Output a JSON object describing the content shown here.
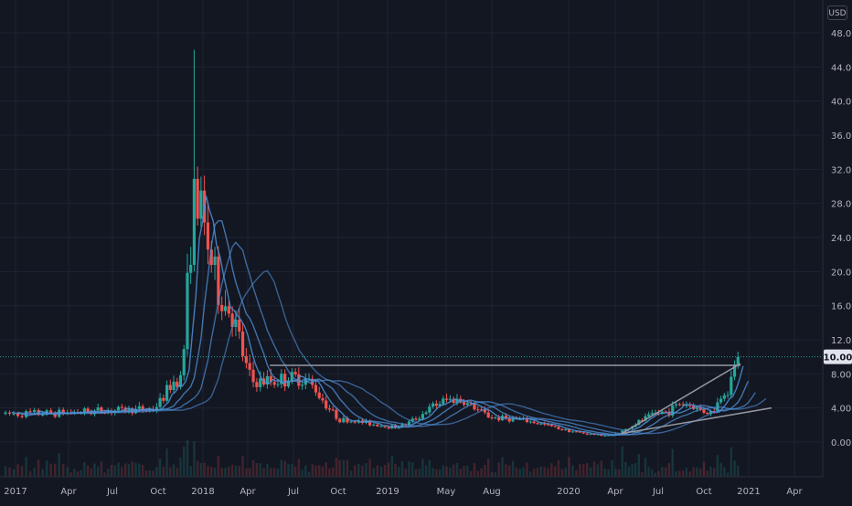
{
  "currency": "USD",
  "colors": {
    "background": "#131722",
    "grid": "#1f2331",
    "axis_text": "#b2b5be",
    "up": "#26a69a",
    "down": "#ef5350",
    "ma": "#4f8fd6",
    "trend": "#9598a1",
    "price_line": "#26a69a",
    "price_badge_bg": "#e0e3eb",
    "price_badge_text": "#131722"
  },
  "chart_data": {
    "type": "candlestick",
    "x_labels": [
      "2017",
      "Apr",
      "Jul",
      "Oct",
      "2018",
      "Apr",
      "Jul",
      "Oct",
      "2019",
      "May",
      "Aug",
      "2020",
      "Apr",
      "Jul",
      "Oct",
      "2021",
      "Apr"
    ],
    "y_ticks": [
      "0.00",
      "4.00",
      "8.00",
      "12.00",
      "16.00",
      "20.00",
      "24.00",
      "28.00",
      "32.00",
      "36.00",
      "40.00",
      "44.00",
      "48.00"
    ],
    "ylim": [
      -4,
      52
    ],
    "last_price": 10.0,
    "last_price_label": "10.00",
    "key_prices": [
      {
        "date": "2016-12",
        "price": 3.3
      },
      {
        "date": "2017-09",
        "price": 3.8
      },
      {
        "date": "2017-11",
        "price": 7.5
      },
      {
        "date": "2017-12",
        "price": 28.0
      },
      {
        "date": "2017-12-15",
        "price_high": 46.0
      },
      {
        "date": "2018-02",
        "price": 16.0
      },
      {
        "date": "2018-04",
        "price": 7.0
      },
      {
        "date": "2018-07",
        "price": 7.5
      },
      {
        "date": "2018-10",
        "price": 2.5
      },
      {
        "date": "2019-01",
        "price": 1.8
      },
      {
        "date": "2019-05",
        "price": 5.0
      },
      {
        "date": "2019-08",
        "price": 2.8
      },
      {
        "date": "2020-03",
        "price": 0.8
      },
      {
        "date": "2020-07",
        "price": 3.5
      },
      {
        "date": "2020-08",
        "price": 4.5
      },
      {
        "date": "2020-10",
        "price": 3.5
      },
      {
        "date": "2020-11",
        "price": 6.0
      },
      {
        "date": "2020-12",
        "price": 10.0
      }
    ],
    "horizontal_line": {
      "price": 9.0,
      "from": "2018-05",
      "to": "2020-12"
    },
    "trend_lines": [
      {
        "from": {
          "date": "2020-04",
          "price": 1.0
        },
        "to": {
          "date": "2020-12-15",
          "price": 9.2
        }
      },
      {
        "from": {
          "date": "2020-04",
          "price": 1.0
        },
        "to": {
          "date": "2021-02-15",
          "price": 4.0
        }
      }
    ],
    "moving_averages": 4,
    "legend": "none",
    "grid": true
  }
}
